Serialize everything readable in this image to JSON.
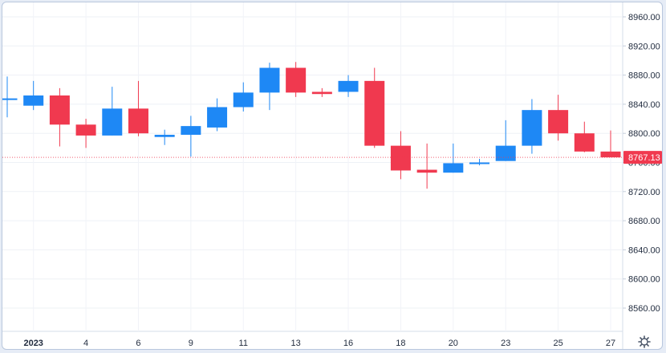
{
  "chart_data": {
    "type": "candlestick",
    "title": "",
    "xlabel": "",
    "ylabel": "",
    "ylim": [
      8520,
      8960
    ],
    "y_ticks": [
      "8960.00",
      "8920.00",
      "8880.00",
      "8840.00",
      "8800.00",
      "8760.00",
      "8720.00",
      "8680.00",
      "8640.00",
      "8600.00",
      "8560.00"
    ],
    "x_tick_labels": [
      "2023",
      "4",
      "6",
      "9",
      "11",
      "13",
      "16",
      "18",
      "20",
      "23",
      "25",
      "27"
    ],
    "last_price_label": "8767.13",
    "grid": true,
    "colors": {
      "up": "#1e88f5",
      "down": "#f0394f",
      "last_price_line": "#f0394f"
    },
    "candles": [
      {
        "open": 8846,
        "high": 8878,
        "low": 8822,
        "close": 8848
      },
      {
        "open": 8838,
        "high": 8872,
        "low": 8832,
        "close": 8852
      },
      {
        "open": 8852,
        "high": 8862,
        "low": 8782,
        "close": 8812
      },
      {
        "open": 8812,
        "high": 8820,
        "low": 8780,
        "close": 8797
      },
      {
        "open": 8797,
        "high": 8864,
        "low": 8797,
        "close": 8834
      },
      {
        "open": 8834,
        "high": 8872,
        "low": 8796,
        "close": 8800
      },
      {
        "open": 8795,
        "high": 8805,
        "low": 8784,
        "close": 8798
      },
      {
        "open": 8798,
        "high": 8824,
        "low": 8768,
        "close": 8810
      },
      {
        "open": 8808,
        "high": 8848,
        "low": 8803,
        "close": 8836
      },
      {
        "open": 8836,
        "high": 8870,
        "low": 8830,
        "close": 8856
      },
      {
        "open": 8856,
        "high": 8897,
        "low": 8832,
        "close": 8890
      },
      {
        "open": 8890,
        "high": 8898,
        "low": 8850,
        "close": 8856
      },
      {
        "open": 8857,
        "high": 8862,
        "low": 8850,
        "close": 8854
      },
      {
        "open": 8857,
        "high": 8880,
        "low": 8850,
        "close": 8872
      },
      {
        "open": 8872,
        "high": 8890,
        "low": 8780,
        "close": 8783
      },
      {
        "open": 8783,
        "high": 8803,
        "low": 8737,
        "close": 8749
      },
      {
        "open": 8750,
        "high": 8786,
        "low": 8724,
        "close": 8746
      },
      {
        "open": 8746,
        "high": 8786,
        "low": 8746,
        "close": 8759
      },
      {
        "open": 8760,
        "high": 8765,
        "low": 8756,
        "close": 8760
      },
      {
        "open": 8762,
        "high": 8818,
        "low": 8762,
        "close": 8783
      },
      {
        "open": 8783,
        "high": 8847,
        "low": 8772,
        "close": 8832
      },
      {
        "open": 8832,
        "high": 8853,
        "low": 8790,
        "close": 8800
      },
      {
        "open": 8800,
        "high": 8816,
        "low": 8774,
        "close": 8775
      },
      {
        "open": 8775,
        "high": 8804,
        "low": 8770,
        "close": 8767
      }
    ]
  }
}
